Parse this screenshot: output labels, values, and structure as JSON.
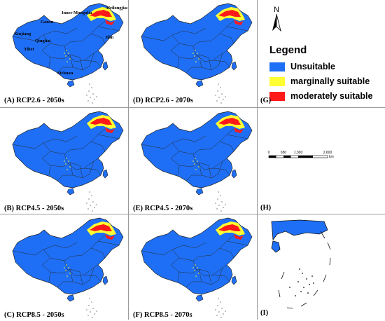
{
  "panels": [
    {
      "id": "A",
      "label": "(A) RCP2.6 - 2050s",
      "suitability": "north-east"
    },
    {
      "id": "D",
      "label": "(D) RCP2.6 - 2070s",
      "suitability": "north-east"
    },
    {
      "id": "G",
      "label": "(G)"
    },
    {
      "id": "B",
      "label": "(B) RCP4.5 - 2050s",
      "suitability": "north-east"
    },
    {
      "id": "E",
      "label": "(E) RCP4.5 - 2070s",
      "suitability": "north-east"
    },
    {
      "id": "H",
      "label": "(H)"
    },
    {
      "id": "C",
      "label": "(C) RCP8.5 - 2050s",
      "suitability": "north-east"
    },
    {
      "id": "F",
      "label": "(F) RCP8.5 - 2070s",
      "suitability": "north-east"
    },
    {
      "id": "I",
      "label": "(I)"
    }
  ],
  "place_names": [
    "Heilongjiang",
    "Inner Mongolia",
    "Gansu",
    "Xinjiang",
    "Qinghai",
    "Tibet",
    "Jilin",
    "Sichuan"
  ],
  "legend": {
    "title": "Legend",
    "items": [
      {
        "label": "Unsuitable",
        "color": "#1e6ff5"
      },
      {
        "label": "marginally suitable",
        "color": "#ffff33"
      },
      {
        "label": "moderately suitable",
        "color": "#ff1a1a"
      }
    ]
  },
  "north_arrow": {
    "label": "N"
  },
  "scale_bar": {
    "ticks": [
      "0",
      "650",
      "1,300",
      "2,600"
    ],
    "unit": "km"
  },
  "colors": {
    "land": "#1e6ff5",
    "border": "#3a3a3a",
    "marginal": "#ffff33",
    "moderate": "#ff1a1a"
  }
}
